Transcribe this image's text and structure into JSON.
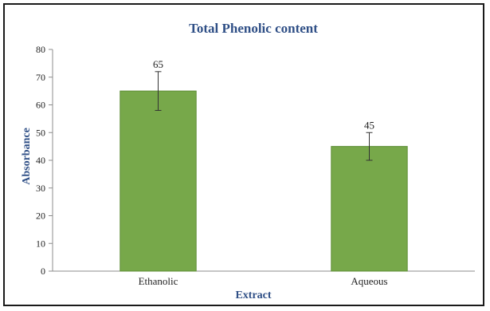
{
  "chart_data": {
    "type": "bar",
    "title": "Total Phenolic content",
    "xlabel": "Extract",
    "ylabel": "Absorbance",
    "categories": [
      "Ethanolic",
      "Aqueous"
    ],
    "values": [
      65,
      45
    ],
    "error": [
      7,
      5
    ],
    "data_labels": [
      "65",
      "45"
    ],
    "ylim": [
      0,
      80
    ],
    "yticks": [
      0,
      10,
      20,
      30,
      40,
      50,
      60,
      70,
      80
    ],
    "grid": false,
    "legend": "none",
    "colors": {
      "bar": "#77a84a",
      "bar_edge": "#5f8e37",
      "title": "#2f4f86",
      "axis": "#8c8c8c",
      "error_bar": "#333333"
    }
  }
}
